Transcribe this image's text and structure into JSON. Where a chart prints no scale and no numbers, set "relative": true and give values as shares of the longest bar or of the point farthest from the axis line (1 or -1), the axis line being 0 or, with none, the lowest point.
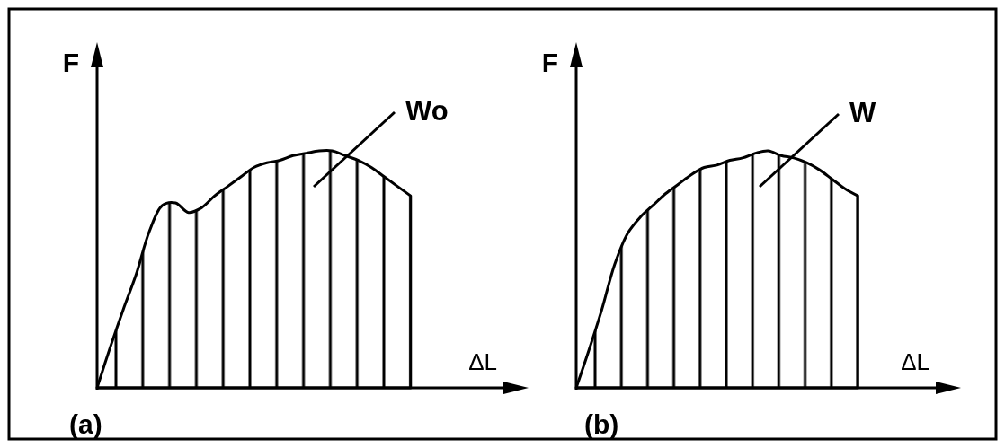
{
  "chart_data": [
    {
      "type": "area",
      "title": "(a)",
      "xlabel": "ΔL",
      "ylabel": "F",
      "annotations": [
        "Wo"
      ],
      "relative": true,
      "color": "#000000",
      "categories": [
        null,
        null,
        null,
        null,
        null,
        null,
        null,
        null,
        null,
        null,
        null,
        null,
        null,
        null,
        null,
        null,
        null,
        null,
        null,
        null,
        null,
        null,
        null,
        null,
        null,
        null,
        null,
        null,
        null,
        null,
        null,
        null,
        null
      ],
      "values": [
        0,
        0.17,
        0.33,
        0.48,
        0.66,
        0.77,
        0.78,
        0.74,
        0.76,
        0.81,
        0.85,
        0.89,
        0.93,
        0.95,
        0.96,
        0.98,
        0.99,
        1,
        1,
        0.98,
        0.96,
        0.93,
        0.89,
        0.85,
        0.81,
        null,
        null,
        null,
        null,
        null,
        null,
        null,
        null
      ]
    },
    {
      "type": "area",
      "title": "(b)",
      "xlabel": "ΔL",
      "ylabel": "F",
      "annotations": [
        "W"
      ],
      "relative": true,
      "color": "#000000",
      "categories": [
        null,
        null,
        null,
        null,
        null,
        null,
        null,
        null,
        null,
        null,
        null,
        null,
        null,
        null,
        null,
        null,
        null,
        null,
        null,
        null,
        null,
        null,
        null,
        null,
        null,
        null,
        null,
        null,
        null,
        null
      ],
      "values": [
        0,
        0.16,
        0.33,
        0.52,
        0.65,
        0.72,
        0.77,
        0.82,
        0.86,
        0.9,
        0.93,
        0.94,
        0.96,
        0.97,
        0.99,
        1,
        0.98,
        0.97,
        0.95,
        0.92,
        0.88,
        0.84,
        0.81,
        null,
        null,
        null,
        null,
        null,
        null,
        null
      ]
    }
  ]
}
